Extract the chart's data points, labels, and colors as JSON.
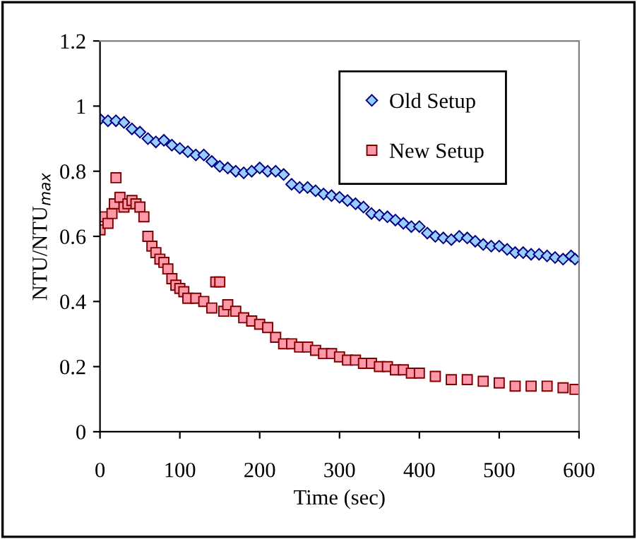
{
  "chart_data": {
    "type": "scatter",
    "xlabel": "Time (sec)",
    "ylabel": "NTU/NTU$_{max}$",
    "xlim": [
      0,
      600
    ],
    "xticks": [
      0,
      100,
      200,
      300,
      400,
      500,
      600
    ],
    "ylim": [
      0,
      1.2
    ],
    "yticks": [
      0,
      0.2,
      0.4,
      0.6,
      0.8,
      1,
      1.2
    ],
    "grid": false,
    "legend": "top right",
    "series": [
      {
        "name": "Old Setup",
        "color": "#99ccff",
        "marker": "diamond",
        "x": [
          0,
          10,
          20,
          30,
          40,
          50,
          60,
          70,
          80,
          90,
          100,
          110,
          120,
          130,
          140,
          150,
          160,
          170,
          180,
          190,
          200,
          210,
          220,
          230,
          240,
          250,
          260,
          270,
          280,
          290,
          300,
          310,
          320,
          330,
          340,
          350,
          360,
          370,
          380,
          390,
          400,
          410,
          420,
          430,
          440,
          450,
          460,
          470,
          480,
          490,
          500,
          510,
          520,
          530,
          540,
          550,
          560,
          570,
          580,
          590,
          595
        ],
        "values": [
          0.96,
          0.955,
          0.955,
          0.95,
          0.93,
          0.92,
          0.9,
          0.89,
          0.895,
          0.88,
          0.87,
          0.86,
          0.85,
          0.85,
          0.83,
          0.815,
          0.81,
          0.8,
          0.795,
          0.8,
          0.81,
          0.8,
          0.8,
          0.79,
          0.76,
          0.75,
          0.75,
          0.74,
          0.73,
          0.725,
          0.72,
          0.71,
          0.7,
          0.69,
          0.67,
          0.665,
          0.66,
          0.65,
          0.64,
          0.63,
          0.63,
          0.61,
          0.6,
          0.595,
          0.59,
          0.6,
          0.595,
          0.585,
          0.575,
          0.57,
          0.57,
          0.56,
          0.55,
          0.55,
          0.545,
          0.545,
          0.54,
          0.535,
          0.53,
          0.54,
          0.53
        ]
      },
      {
        "name": "New Setup",
        "color": "#ff99aa",
        "marker": "square",
        "x": [
          0,
          5,
          10,
          15,
          18,
          20,
          25,
          30,
          35,
          40,
          45,
          50,
          55,
          60,
          65,
          70,
          75,
          80,
          85,
          90,
          95,
          100,
          105,
          110,
          120,
          130,
          140,
          145,
          150,
          155,
          160,
          170,
          180,
          190,
          200,
          210,
          220,
          230,
          240,
          250,
          260,
          270,
          280,
          290,
          300,
          310,
          320,
          330,
          340,
          350,
          360,
          370,
          380,
          390,
          400,
          420,
          440,
          460,
          480,
          500,
          520,
          540,
          560,
          580,
          595
        ],
        "values": [
          0.62,
          0.66,
          0.64,
          0.67,
          0.7,
          0.78,
          0.72,
          0.69,
          0.7,
          0.71,
          0.7,
          0.69,
          0.66,
          0.6,
          0.57,
          0.55,
          0.53,
          0.52,
          0.5,
          0.47,
          0.45,
          0.44,
          0.43,
          0.41,
          0.41,
          0.4,
          0.38,
          0.46,
          0.46,
          0.37,
          0.39,
          0.37,
          0.35,
          0.34,
          0.33,
          0.32,
          0.29,
          0.27,
          0.27,
          0.26,
          0.26,
          0.25,
          0.24,
          0.24,
          0.23,
          0.22,
          0.22,
          0.21,
          0.21,
          0.2,
          0.2,
          0.19,
          0.19,
          0.18,
          0.18,
          0.17,
          0.16,
          0.16,
          0.155,
          0.15,
          0.14,
          0.14,
          0.14,
          0.135,
          0.13
        ]
      }
    ]
  }
}
